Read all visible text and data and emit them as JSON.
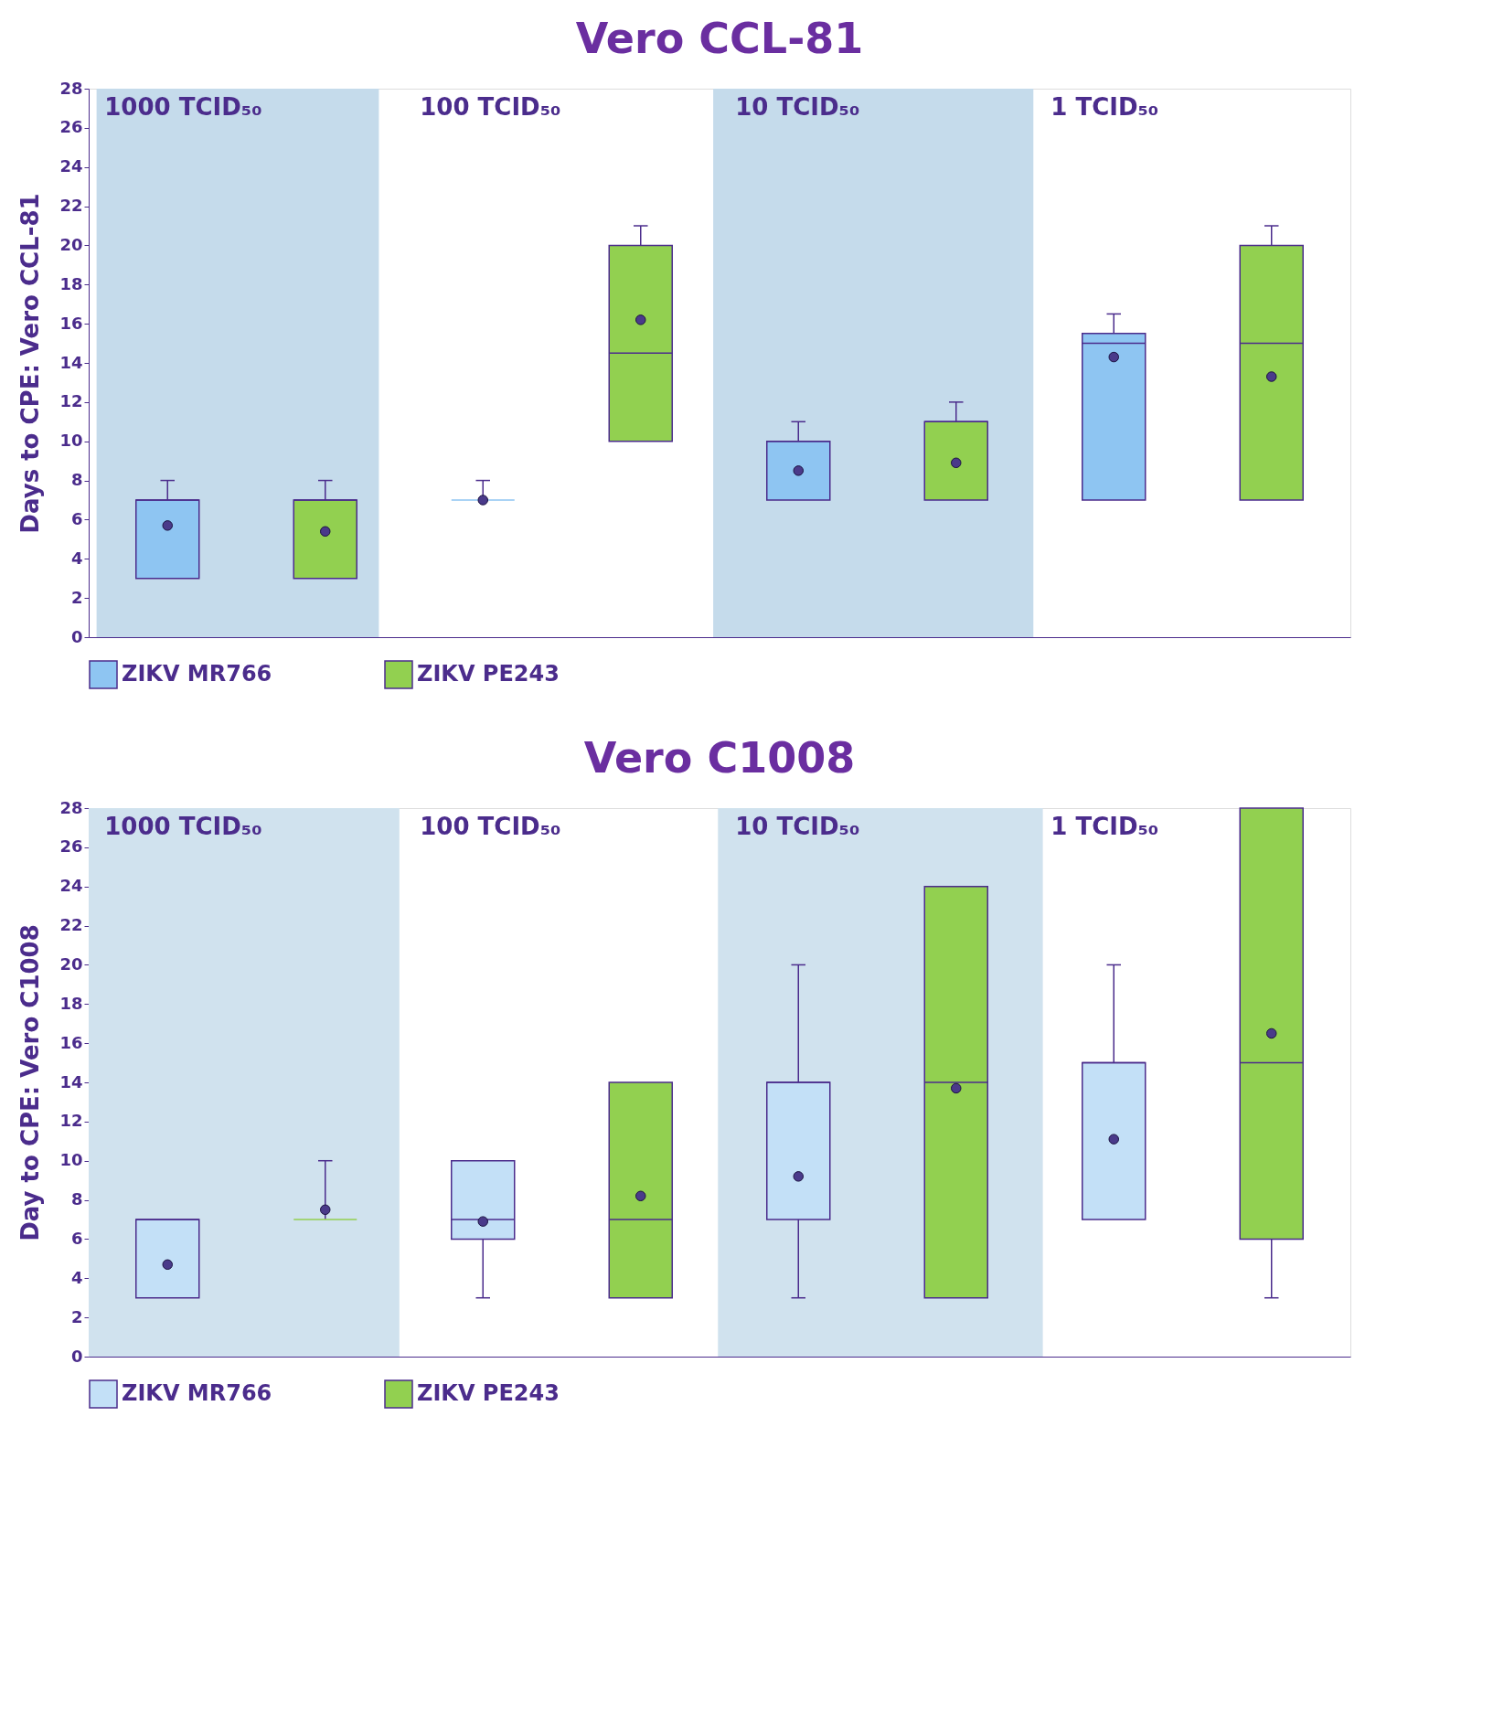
{
  "chart_data": [
    {
      "type": "box",
      "title": "Vero CCL-81",
      "ylabel": "Days to CPE: Vero CCL-81",
      "categories": [
        null,
        null,
        null,
        null,
        null,
        null,
        null,
        null
      ],
      "ylim": [
        0,
        28
      ],
      "yticks": [
        0,
        2,
        4,
        6,
        8,
        10,
        12,
        14,
        16,
        18,
        20,
        22,
        24,
        26,
        28
      ],
      "tick_labels": "y",
      "grid": false,
      "legend": "bottom",
      "annotations": [
        "1000 TCID₅₀",
        "100 TCID₅₀",
        "10 TCID₅₀",
        "1 TCID₅₀"
      ],
      "series": [
        {
          "name": "ZIKV MR766",
          "color": "#8ec5f2",
          "boxes": [
            {
              "low": 3,
              "q1": 3,
              "median": 7,
              "q3": 7,
              "high": 8,
              "mean": 5.7
            },
            null,
            {
              "low": 7,
              "q1": 7,
              "median": 7,
              "q3": 7,
              "high": 8,
              "mean": 7
            },
            null,
            {
              "low": 7,
              "q1": 7,
              "median": 10,
              "q3": 10,
              "high": 11,
              "mean": 8.5
            },
            null,
            {
              "low": 7,
              "q1": 7,
              "median": 15,
              "q3": 15.5,
              "high": 16.5,
              "mean": 14.3
            },
            null
          ]
        },
        {
          "name": "ZIKV PE243",
          "color": "#92d050",
          "boxes": [
            null,
            {
              "low": 3,
              "q1": 3,
              "median": 7,
              "q3": 7,
              "high": 8,
              "mean": 5.4
            },
            null,
            {
              "low": 10,
              "q1": 10,
              "median": 14.5,
              "q3": 20,
              "high": 21,
              "mean": 16.2
            },
            null,
            {
              "low": 7,
              "q1": 7,
              "median": 11,
              "q3": 11,
              "high": 12,
              "mean": 8.9
            },
            null,
            {
              "low": 7,
              "q1": 7,
              "median": 15,
              "q3": 20,
              "high": 21,
              "mean": 13.3
            }
          ]
        }
      ]
    },
    {
      "type": "box",
      "title": "Vero C1008",
      "ylabel": "Day to CPE: Vero C1008",
      "categories": [
        null,
        null,
        null,
        null,
        null,
        null,
        null,
        null
      ],
      "ylim": [
        0,
        28
      ],
      "yticks": [
        0,
        2,
        4,
        6,
        8,
        10,
        12,
        14,
        16,
        18,
        20,
        22,
        24,
        26,
        28
      ],
      "tick_labels": "y",
      "grid": false,
      "legend": "bottom",
      "annotations": [
        "1000 TCID₅₀",
        "100 TCID₅₀",
        "10 TCID₅₀",
        "1 TCID₅₀"
      ],
      "series": [
        {
          "name": "ZIKV MR766",
          "color": "#c3e0f7",
          "boxes": [
            {
              "low": 3,
              "q1": 3,
              "median": 7,
              "q3": 7,
              "high": 7,
              "mean": 4.7
            },
            null,
            {
              "low": 3,
              "q1": 6,
              "median": 7,
              "q3": 10,
              "high": 10,
              "mean": 6.9
            },
            null,
            {
              "low": 3,
              "q1": 7,
              "median": 14,
              "q3": 14,
              "high": 20,
              "mean": 9.2
            },
            null,
            {
              "low": 7,
              "q1": 7,
              "median": 15,
              "q3": 15,
              "high": 20,
              "mean": 11.1
            },
            null
          ]
        },
        {
          "name": "ZIKV PE243",
          "color": "#92d050",
          "boxes": [
            null,
            {
              "low": 7,
              "q1": 7,
              "median": 7,
              "q3": 7,
              "high": 10,
              "mean": 7.5
            },
            null,
            {
              "low": 3,
              "q1": 3,
              "median": 7,
              "q3": 14,
              "high": 14,
              "mean": 8.2
            },
            null,
            {
              "low": 3,
              "q1": 3,
              "median": 14,
              "q3": 24,
              "high": 24,
              "mean": 13.7
            },
            null,
            {
              "low": 3,
              "q1": 6,
              "median": 15,
              "q3": 28,
              "high": 28,
              "mean": 16.5
            }
          ]
        }
      ]
    }
  ]
}
